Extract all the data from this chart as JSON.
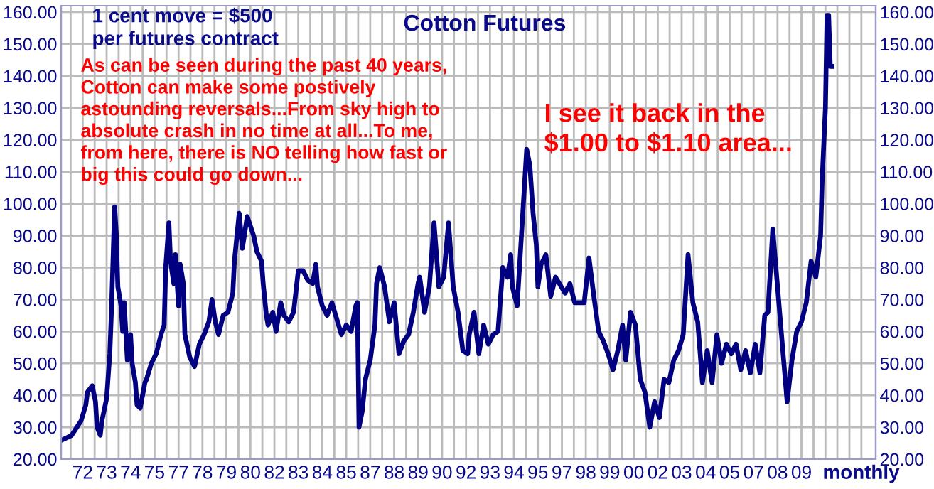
{
  "chart_data": {
    "type": "line",
    "title": "Cotton Futures",
    "xlabel": "monthly",
    "annotations": [
      "1 cent move = $500\nper futures contract",
      "As can be seen during the past 40 years,\nCotton can make some postively\nastounding reversals...From sky high to\nabsolute crash in no time at all...To me,\nfrom here, there is NO telling how fast or\nbig this could go down...",
      "I see it back in the\n$1.00 to $1.10 area..."
    ],
    "xlim": [
      "1970-11-16",
      "2013-05-16"
    ],
    "xticks": [
      {
        "value": "1971-05-16",
        "label": null
      },
      {
        "value": "1972-01",
        "label": "72"
      },
      {
        "value": "1972-08-16",
        "label": null
      },
      {
        "value": "1973-04",
        "label": "73"
      },
      {
        "value": "1973-11-16",
        "label": null
      },
      {
        "value": "1974-07",
        "label": "74"
      },
      {
        "value": "1975-02-16",
        "label": null
      },
      {
        "value": "1975-10",
        "label": "75"
      },
      {
        "value": "1976-05-16",
        "label": null
      },
      {
        "value": "1977-01",
        "label": "77"
      },
      {
        "value": "1977-08-16",
        "label": null
      },
      {
        "value": "1978-04",
        "label": "78"
      },
      {
        "value": "1978-11-16",
        "label": null
      },
      {
        "value": "1979-07",
        "label": "79"
      },
      {
        "value": "1980-02-16",
        "label": null
      },
      {
        "value": "1980-10",
        "label": "80"
      },
      {
        "value": "1981-05-16",
        "label": null
      },
      {
        "value": "1982-01",
        "label": "82"
      },
      {
        "value": "1982-08-16",
        "label": null
      },
      {
        "value": "1983-04",
        "label": "83"
      },
      {
        "value": "1983-11-16",
        "label": null
      },
      {
        "value": "1984-07",
        "label": "84"
      },
      {
        "value": "1985-02-16",
        "label": null
      },
      {
        "value": "1985-10",
        "label": "85"
      },
      {
        "value": "1986-05-16",
        "label": null
      },
      {
        "value": "1987-01",
        "label": "87"
      },
      {
        "value": "1987-08-16",
        "label": null
      },
      {
        "value": "1988-04",
        "label": "88"
      },
      {
        "value": "1988-11-16",
        "label": null
      },
      {
        "value": "1989-07",
        "label": "89"
      },
      {
        "value": "1990-02-16",
        "label": null
      },
      {
        "value": "1990-10",
        "label": "90"
      },
      {
        "value": "1991-05-16",
        "label": null
      },
      {
        "value": "1992-01",
        "label": "92"
      },
      {
        "value": "1992-08-16",
        "label": null
      },
      {
        "value": "1993-04",
        "label": "93"
      },
      {
        "value": "1993-11-16",
        "label": null
      },
      {
        "value": "1994-07",
        "label": "94"
      },
      {
        "value": "1995-02-16",
        "label": null
      },
      {
        "value": "1995-10",
        "label": "95"
      },
      {
        "value": "1996-05-16",
        "label": null
      },
      {
        "value": "1997-01",
        "label": "97"
      },
      {
        "value": "1997-08-16",
        "label": null
      },
      {
        "value": "1998-04",
        "label": "98"
      },
      {
        "value": "1998-11-16",
        "label": null
      },
      {
        "value": "1999-07",
        "label": "99"
      },
      {
        "value": "2000-02-16",
        "label": null
      },
      {
        "value": "2000-10",
        "label": "00"
      },
      {
        "value": "2001-05-16",
        "label": null
      },
      {
        "value": "2002-01",
        "label": "02"
      },
      {
        "value": "2002-08-16",
        "label": null
      },
      {
        "value": "2003-04",
        "label": "03"
      },
      {
        "value": "2003-11-16",
        "label": null
      },
      {
        "value": "2004-07",
        "label": "04"
      },
      {
        "value": "2005-02-16",
        "label": null
      },
      {
        "value": "2005-10",
        "label": "05"
      },
      {
        "value": "2006-05-16",
        "label": null
      },
      {
        "value": "2007-01",
        "label": "07"
      },
      {
        "value": "2007-08-16",
        "label": null
      },
      {
        "value": "2008-04",
        "label": "08"
      },
      {
        "value": "2008-11-16",
        "label": null
      },
      {
        "value": "2009-07",
        "label": "09"
      },
      {
        "value": "2010-02-16",
        "label": null
      },
      {
        "value": "2010-10",
        "label": null
      },
      {
        "value": "2011-05-16",
        "label": null
      },
      {
        "value": "2012-01",
        "label": null
      },
      {
        "value": "2012-08-16",
        "label": null
      }
    ],
    "ylim": [
      20,
      162
    ],
    "yticks": [
      {
        "value": 20,
        "label": "20.00"
      },
      {
        "value": 30,
        "label": "30.00"
      },
      {
        "value": 40,
        "label": "40.00"
      },
      {
        "value": 50,
        "label": "50.00"
      },
      {
        "value": 60,
        "label": "60.00"
      },
      {
        "value": 70,
        "label": "70.00"
      },
      {
        "value": 80,
        "label": "80.00"
      },
      {
        "value": 90,
        "label": "90.00"
      },
      {
        "value": 100,
        "label": "100.00"
      },
      {
        "value": 110,
        "label": "110.00"
      },
      {
        "value": 120,
        "label": "120.00"
      },
      {
        "value": 130,
        "label": "130.00"
      },
      {
        "value": 140,
        "label": "140.00"
      },
      {
        "value": 150,
        "label": "150.00"
      },
      {
        "value": 160,
        "label": "160.00"
      }
    ],
    "y2lim": [
      20,
      162
    ],
    "y2ticks": [
      {
        "value": 20,
        "label": "20.00"
      },
      {
        "value": 30,
        "label": "30.00"
      },
      {
        "value": 40,
        "label": "40.00"
      },
      {
        "value": 50,
        "label": "50.00"
      },
      {
        "value": 60,
        "label": "60.00"
      },
      {
        "value": 70,
        "label": "70.00"
      },
      {
        "value": 80,
        "label": "80.00"
      },
      {
        "value": 90,
        "label": "90.00"
      },
      {
        "value": 100,
        "label": "100.00"
      },
      {
        "value": 110,
        "label": "110.00"
      },
      {
        "value": 120,
        "label": "120.00"
      },
      {
        "value": 130,
        "label": "130.00"
      },
      {
        "value": 140,
        "label": "140.00"
      },
      {
        "value": 150,
        "label": "150.00"
      },
      {
        "value": 160,
        "label": "160.00"
      }
    ],
    "grid": true,
    "marker": "none",
    "line_style": "solid",
    "series": [
      {
        "color": "#000080",
        "x": [
          "1970-12",
          "1971-06",
          "1971-12",
          "1972-03",
          "1972-04",
          "1972-07",
          "1972-09",
          "1972-10",
          "1972-12",
          "1973-01",
          "1973-04",
          "1973-06",
          "1973-07",
          "1973-09",
          "1973-10",
          "1973-11",
          "1974-01",
          "1974-02",
          "1974-03",
          "1974-05",
          "1974-07",
          "1974-08",
          "1974-10",
          "1974-11",
          "1975-01",
          "1975-04",
          "1975-05",
          "1975-08",
          "1975-11",
          "1976-02",
          "1976-04",
          "1976-05",
          "1976-07",
          "1976-08",
          "1976-10",
          "1976-11",
          "1977-01",
          "1977-02",
          "1977-04",
          "1977-05",
          "1977-08",
          "1977-11",
          "1978-02",
          "1978-05",
          "1978-08",
          "1978-10",
          "1978-12",
          "1979-02",
          "1979-05",
          "1979-08",
          "1979-11",
          "1979-12",
          "1980-03",
          "1980-05",
          "1980-08",
          "1980-12",
          "1981-02",
          "1981-05",
          "1981-06",
          "1981-08",
          "1981-09",
          "1981-12",
          "1982-02",
          "1982-05",
          "1982-07",
          "1982-10",
          "1983-01",
          "1983-04",
          "1983-07",
          "1983-10",
          "1984-01",
          "1984-03",
          "1984-04",
          "1984-07",
          "1984-10",
          "1985-01",
          "1985-04",
          "1985-07",
          "1985-10",
          "1986-01",
          "1986-04",
          "1986-05",
          "1986-06",
          "1986-08",
          "1986-10",
          "1987-01",
          "1987-04",
          "1987-05",
          "1987-07",
          "1987-10",
          "1988-01",
          "1988-04",
          "1988-07",
          "1988-10",
          "1989-01",
          "1989-04",
          "1989-07",
          "1989-08",
          "1989-11",
          "1990-02",
          "1990-05",
          "1990-08",
          "1990-11",
          "1991-02",
          "1991-05",
          "1991-08",
          "1991-11",
          "1992-02",
          "1992-03",
          "1992-06",
          "1992-09",
          "1992-12",
          "1993-03",
          "1993-06",
          "1993-09",
          "1993-12",
          "1994-03",
          "1994-05",
          "1994-06",
          "1994-09",
          "1995-03",
          "1995-05",
          "1995-07",
          "1995-09",
          "1995-10",
          "1995-12",
          "1996-03",
          "1996-06",
          "1996-09",
          "1997-03",
          "1997-06",
          "1997-09",
          "1998-03",
          "1998-06",
          "1998-09",
          "1998-12",
          "1999-03",
          "1999-06",
          "1999-09",
          "1999-12",
          "2000-03",
          "2000-05",
          "2000-08",
          "2000-11",
          "2001-02",
          "2001-05",
          "2001-08",
          "2001-11",
          "2002-02",
          "2002-05",
          "2002-08",
          "2002-11",
          "2003-02",
          "2003-05",
          "2003-08",
          "2003-11",
          "2004-02",
          "2004-05",
          "2004-08",
          "2004-11",
          "2005-02",
          "2005-05",
          "2005-08",
          "2005-11",
          "2006-02",
          "2006-05",
          "2006-08",
          "2006-11",
          "2007-02",
          "2007-05",
          "2007-08",
          "2007-10",
          "2008-01",
          "2008-04",
          "2008-07",
          "2008-10",
          "2009-01",
          "2009-04",
          "2009-07",
          "2009-10",
          "2010-01",
          "2010-04",
          "2010-07",
          "2010-08",
          "2010-10",
          "2010-11",
          "2010-12",
          "2011-01",
          "2011-02"
        ],
        "values": [
          26,
          27.4,
          32,
          37,
          41,
          43,
          38,
          30,
          27.5,
          32,
          39,
          53,
          66,
          99,
          91,
          74,
          68,
          60,
          69,
          51,
          59,
          50,
          44,
          37,
          36,
          44,
          45,
          50,
          53,
          59,
          62,
          80,
          94,
          82,
          75,
          84,
          68,
          81,
          75,
          59,
          52,
          49,
          56,
          59,
          63,
          70,
          63,
          59,
          65,
          66,
          72,
          82,
          97,
          86,
          96,
          90,
          85,
          82,
          75,
          65,
          62,
          66,
          60,
          69,
          65,
          63,
          66,
          79,
          79,
          76,
          75,
          81,
          74,
          68,
          65,
          69,
          64,
          59,
          62,
          60,
          68,
          69,
          30,
          35,
          45,
          51,
          62,
          75,
          80,
          74,
          63,
          69,
          53,
          57,
          59,
          66,
          75,
          77,
          66,
          74,
          94,
          74,
          77,
          94,
          74,
          66,
          54,
          53,
          59,
          66,
          53,
          62,
          56,
          59,
          60,
          80,
          77,
          84,
          74,
          68,
          117,
          112,
          97,
          87,
          74,
          81,
          84,
          71,
          77,
          72,
          75,
          69,
          69,
          83,
          71,
          60,
          57,
          53,
          48,
          54,
          62,
          51,
          66,
          62,
          45,
          41,
          30,
          38,
          33,
          45,
          44,
          51,
          54,
          59,
          84,
          69,
          63,
          44,
          54,
          44,
          59,
          50,
          56,
          53,
          56,
          48,
          54,
          47,
          56,
          47,
          65,
          66,
          92,
          74,
          56,
          38,
          51,
          60,
          63,
          69,
          82,
          77,
          90,
          108,
          130,
          159,
          159,
          143,
          143
        ]
      }
    ]
  }
}
